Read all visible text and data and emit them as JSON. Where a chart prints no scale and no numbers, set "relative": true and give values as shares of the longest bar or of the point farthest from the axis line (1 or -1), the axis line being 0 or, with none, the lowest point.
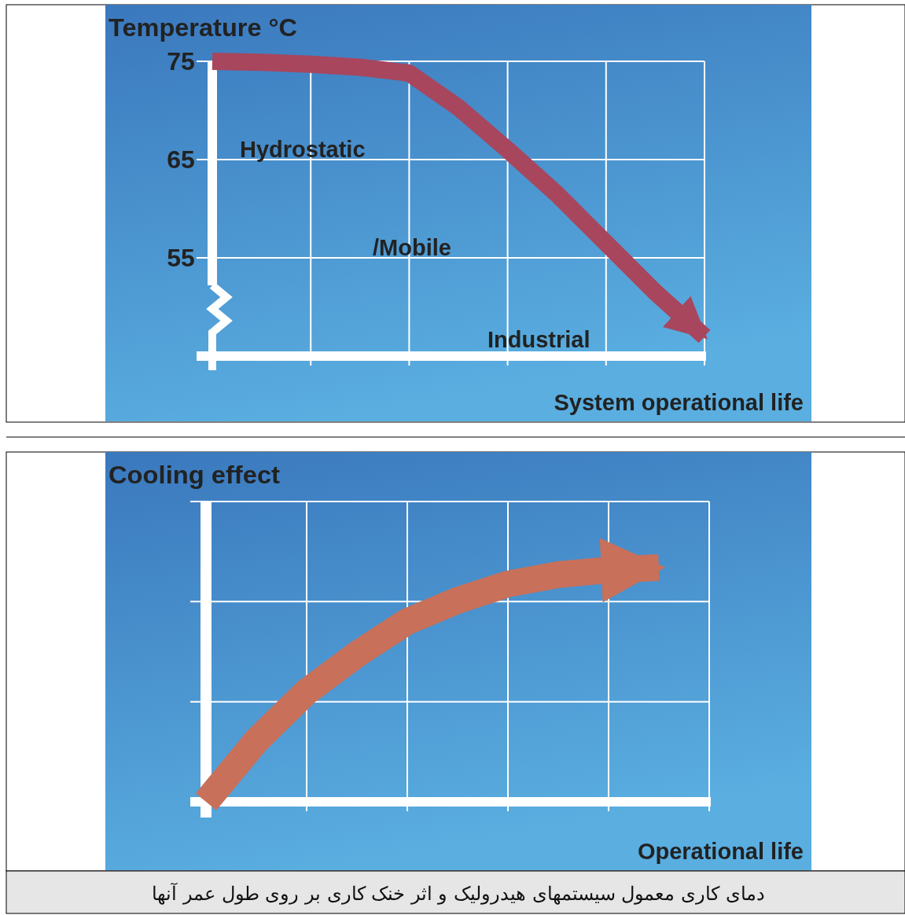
{
  "chart_data": [
    {
      "type": "line",
      "ylabel": "Temperature °C",
      "xlabel": "System operational life",
      "categories": [
        null,
        null,
        null,
        null,
        null,
        null,
        null,
        null,
        null,
        null,
        null
      ],
      "ylim": [
        45,
        75
      ],
      "yticks": [
        55,
        65,
        75
      ],
      "tick_labels": "y",
      "grid": true,
      "series": [
        {
          "color": "#a8465e",
          "values": [
            75,
            74.9,
            74.7,
            74.4,
            73.8,
            70.3,
            66,
            61.5,
            56.5,
            51.5,
            47
          ]
        }
      ],
      "annotations": [
        "Hydrostatic",
        "/Mobile",
        "Industrial"
      ]
    },
    {
      "type": "line",
      "ylabel": "Cooling effect",
      "xlabel": "Operational life",
      "relative": true,
      "categories": [
        null,
        null,
        null,
        null,
        null,
        null,
        null,
        null,
        null,
        null,
        null
      ],
      "tick_labels": false,
      "grid": true,
      "series": [
        {
          "color": "#c8705a",
          "values": [
            0,
            0.26,
            0.47,
            0.63,
            0.77,
            0.86,
            0.93,
            0.97,
            0.99,
            1,
            null
          ]
        }
      ],
      "annotations": [
        "دمای کاری معمول سیستمهای هیدرولیک و اثر خنک کاری بر روی طول عمر آنها"
      ]
    }
  ]
}
